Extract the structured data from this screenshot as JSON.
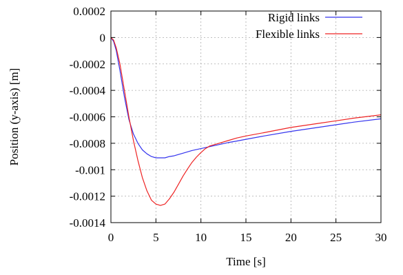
{
  "chart_data": {
    "type": "line",
    "title": "",
    "xlabel": "Time [s]",
    "ylabel": "Position (y-axis) [m]",
    "xlim": [
      0,
      30
    ],
    "ylim": [
      -0.0014,
      0.0002
    ],
    "xticks": [
      0,
      5,
      10,
      15,
      20,
      25,
      30
    ],
    "xtick_labels": [
      "0",
      "5",
      "10",
      "15",
      "20",
      "25",
      "30"
    ],
    "yticks": [
      0.0002,
      0,
      -0.0002,
      -0.0004,
      -0.0006,
      -0.0008,
      -0.001,
      -0.0012,
      -0.0014
    ],
    "ytick_labels": [
      "0.0002",
      "0",
      "-0.0002",
      "-0.0004",
      "-0.0006",
      "-0.0008",
      "-0.001",
      "-0.0012",
      "-0.0014"
    ],
    "grid": true,
    "legend_position": "top-right",
    "series": [
      {
        "name": "Rigid links",
        "color": "#3333ee",
        "x": [
          0,
          0.3,
          0.6,
          1,
          1.5,
          2,
          2.5,
          3,
          3.5,
          4,
          4.5,
          5,
          5.5,
          6,
          6.5,
          7,
          8,
          9,
          10,
          11,
          12,
          13,
          14,
          15,
          17,
          20,
          23,
          25,
          27,
          30
        ],
        "y": [
          0,
          -3e-05,
          -0.0001,
          -0.00025,
          -0.00045,
          -0.00062,
          -0.00073,
          -0.0008,
          -0.00085,
          -0.00088,
          -0.0009,
          -0.00091,
          -0.00091,
          -0.00091,
          -0.0009,
          -0.000895,
          -0.000875,
          -0.000855,
          -0.00084,
          -0.000825,
          -0.00081,
          -0.000795,
          -0.000783,
          -0.00077,
          -0.000745,
          -0.00071,
          -0.00068,
          -0.00066,
          -0.00064,
          -0.000615
        ]
      },
      {
        "name": "Flexible links",
        "color": "#ee2222",
        "x": [
          0,
          0.3,
          0.6,
          1,
          1.5,
          2,
          2.5,
          3,
          3.5,
          4,
          4.5,
          5,
          5.5,
          6,
          6.5,
          7,
          7.5,
          8,
          8.5,
          9,
          9.5,
          10,
          10.5,
          11,
          12,
          13,
          14,
          15,
          17,
          20,
          23,
          25,
          27,
          30
        ],
        "y": [
          0,
          -2e-05,
          -8e-05,
          -0.0002,
          -0.0004,
          -0.0006,
          -0.00078,
          -0.00093,
          -0.00106,
          -0.00116,
          -0.00123,
          -0.00126,
          -0.00127,
          -0.00126,
          -0.00122,
          -0.00117,
          -0.00111,
          -0.00105,
          -0.000995,
          -0.000945,
          -0.000905,
          -0.00087,
          -0.00084,
          -0.00082,
          -0.0008,
          -0.00078,
          -0.00076,
          -0.000745,
          -0.00072,
          -0.00068,
          -0.00065,
          -0.00063,
          -0.00061,
          -0.000585
        ]
      }
    ]
  }
}
